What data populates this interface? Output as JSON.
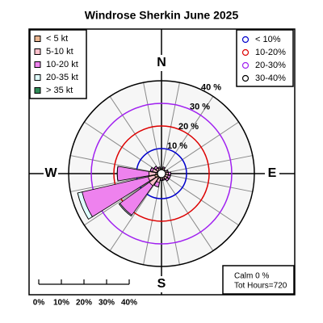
{
  "chart_data": {
    "type": "windrose",
    "title": "Windrose  Sherkin June 2025",
    "x": [
      0,
      22.5,
      45,
      67.5,
      90,
      112.5,
      135,
      157.5,
      180,
      202.5,
      225,
      247.5,
      270,
      292.5,
      315,
      337.5
    ],
    "compass": [
      "N",
      "E",
      "S",
      "W"
    ],
    "series": [
      {
        "name": "< 5  kt",
        "color": "#e9b48f",
        "values": [
          0.5,
          0.5,
          0.5,
          0.5,
          0.5,
          0.5,
          0.5,
          0.5,
          0.5,
          1,
          1.5,
          2,
          1.5,
          1,
          0.5,
          0.5
        ]
      },
      {
        "name": "5-10 kt",
        "color": "#ffc0cb",
        "values": [
          0.5,
          1,
          0.5,
          1,
          1.5,
          1.5,
          1.5,
          1,
          1,
          2,
          4,
          3,
          3,
          2,
          1.5,
          1
        ]
      },
      {
        "name": "10-20 kt",
        "color": "#ee82ee",
        "values": [
          0,
          0.5,
          0,
          0.5,
          1,
          1,
          1,
          0.5,
          0.5,
          2,
          16,
          30,
          14,
          1,
          1,
          0.5
        ]
      },
      {
        "name": "20-35 kt",
        "color": "#e0ffff",
        "values": [
          0,
          0,
          0,
          0,
          0,
          0,
          0,
          0,
          0,
          0,
          0.5,
          2,
          0,
          0,
          0,
          0
        ]
      },
      {
        "name": "> 35 kt",
        "color": "#2e8b57",
        "values": [
          0,
          0,
          0,
          0,
          0,
          0,
          0,
          0,
          0,
          0,
          0,
          0,
          0,
          0,
          0,
          0
        ]
      }
    ],
    "rings": [
      {
        "value": 10,
        "label": "10 %"
      },
      {
        "value": 20,
        "label": "20 %"
      },
      {
        "value": 30,
        "label": "30 %"
      },
      {
        "value": 40,
        "label": "40 %"
      }
    ],
    "ring_colors": [
      "#0000cc",
      "#dd0000",
      "#a020f0",
      "#000000"
    ],
    "ring_legend": [
      "< 10%",
      "10-20%",
      "20-30%",
      "30-40%"
    ],
    "scale_ticks": [
      {
        "value": 0,
        "label": "0%"
      },
      {
        "value": 10,
        "label": "10%"
      },
      {
        "value": 20,
        "label": "20%"
      },
      {
        "value": 30,
        "label": "30%"
      },
      {
        "value": 40,
        "label": "40%"
      }
    ],
    "annotations": [
      "Calm 0 %",
      "Tot Hours=720"
    ]
  }
}
